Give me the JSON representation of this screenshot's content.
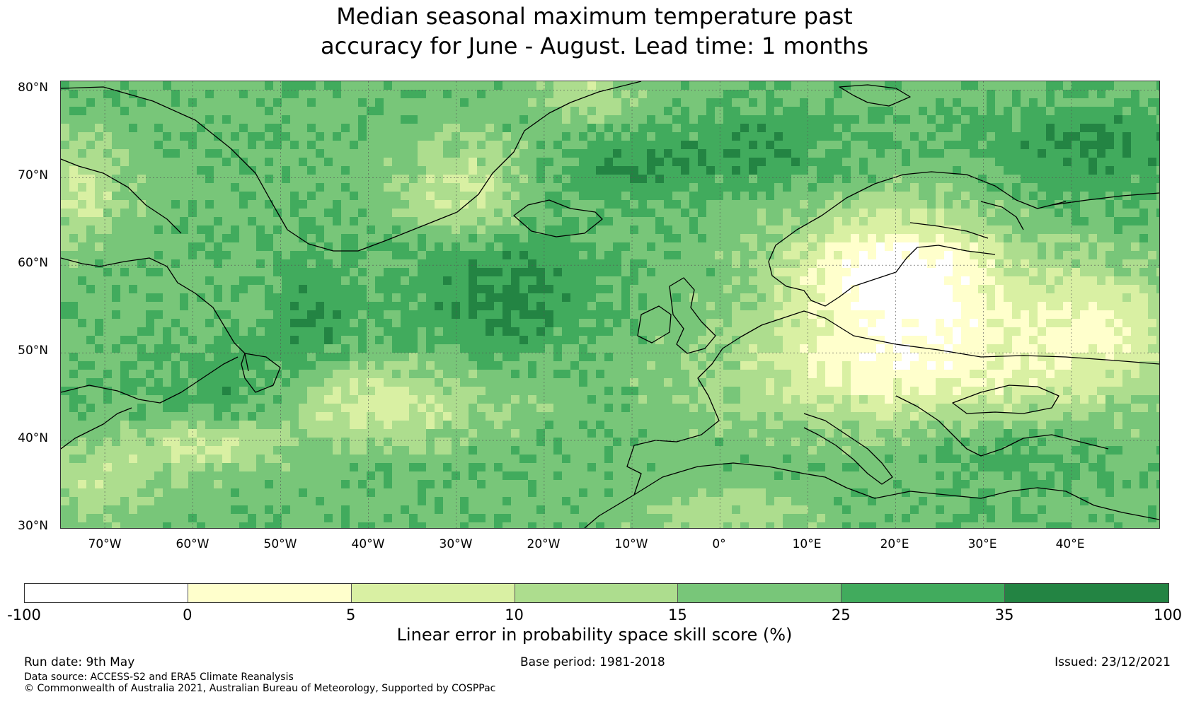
{
  "title": {
    "line1": "Median seasonal maximum temperature past",
    "line2": "accuracy for June - August. Lead time: 1 months"
  },
  "map": {
    "lat_labels": [
      "80°N",
      "70°N",
      "60°N",
      "50°N",
      "40°N",
      "30°N"
    ],
    "lon_labels": [
      "70°W",
      "60°W",
      "50°W",
      "40°W",
      "30°W",
      "20°W",
      "10°W",
      "0°",
      "10°E",
      "20°E",
      "30°E",
      "40°E"
    ],
    "lat_range": [
      30,
      81
    ],
    "lon_range": [
      -75,
      50
    ],
    "gridlines": true,
    "ocean_base_color": "#7bc476"
  },
  "colorbar": {
    "ticks": [
      "-100",
      "0",
      "5",
      "10",
      "15",
      "25",
      "35",
      "100"
    ],
    "colors": [
      "#ffffff",
      "#ffffcc",
      "#d9f0a3",
      "#addd8e",
      "#78c679",
      "#41ab5d",
      "#238443"
    ],
    "label": "Linear error in probability space skill score (%)"
  },
  "footer": {
    "run_date": "Run date: 9th May",
    "base_period": "Base period: 1981-2018",
    "issued": "Issued: 23/12/2021",
    "data_source": "Data source: ACCESS-S2 and ERA5 Climate Reanalysis",
    "copyright": "© Commonwealth of Australia 2021, Australian Bureau of Meteorology, Supported by COSPPac"
  }
}
